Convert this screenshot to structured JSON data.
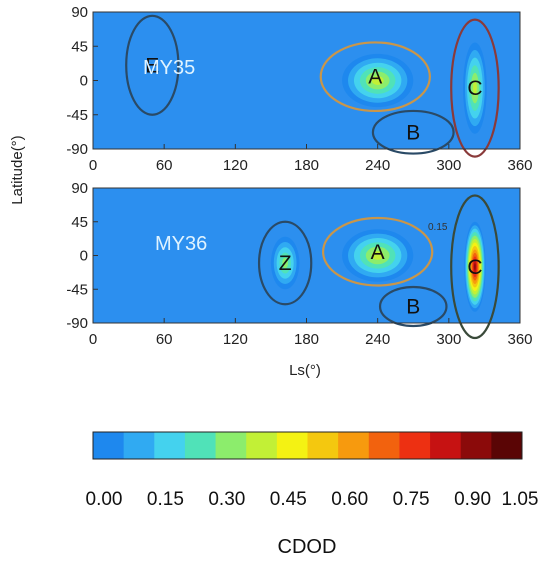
{
  "chart_data": [
    {
      "type": "heatmap",
      "panel_label": "MY35",
      "xlabel": "",
      "ylabel": "Latitude(°)",
      "xlim": [
        0,
        360
      ],
      "ylim": [
        -90,
        90
      ],
      "x_ticks": [
        "0",
        "60",
        "120",
        "180",
        "240",
        "300",
        "360"
      ],
      "y_ticks": [
        "90",
        "45",
        "0",
        "-45",
        "-90"
      ],
      "regions": [
        {
          "label": "E",
          "ls": 50,
          "lat": 20,
          "ls_halfwidth": 22,
          "lat_halfwidth": 65,
          "color": "#2a4a66"
        },
        {
          "label": "A",
          "ls": 238,
          "lat": 5,
          "ls_halfwidth": 46,
          "lat_halfwidth": 45,
          "color": "#c9964a"
        },
        {
          "label": "B",
          "ls": 270,
          "lat": -68,
          "ls_halfwidth": 34,
          "lat_halfwidth": 28,
          "color": "#2a4a66"
        },
        {
          "label": "C",
          "ls": 322,
          "lat": -10,
          "ls_halfwidth": 20,
          "lat_halfwidth": 90,
          "color": "#8a3a3a"
        }
      ],
      "hotspots": [
        {
          "ls": 240,
          "lat": 0,
          "cdod": 0.45,
          "ls_spread": 30,
          "lat_spread": 35
        },
        {
          "ls": 322,
          "lat": -10,
          "cdod": 0.42,
          "ls_spread": 10,
          "lat_spread": 60
        }
      ]
    },
    {
      "type": "heatmap",
      "panel_label": "MY36",
      "xlabel": "Ls(°)",
      "ylabel": "",
      "xlim": [
        0,
        360
      ],
      "ylim": [
        -90,
        90
      ],
      "x_ticks": [
        "0",
        "60",
        "120",
        "180",
        "240",
        "300",
        "360"
      ],
      "y_ticks": [
        "90",
        "45",
        "0",
        "-45",
        "-90"
      ],
      "contour_label": "0.15",
      "regions": [
        {
          "label": "Z",
          "ls": 162,
          "lat": -10,
          "ls_halfwidth": 22,
          "lat_halfwidth": 55,
          "color": "#2a4a66"
        },
        {
          "label": "A",
          "ls": 240,
          "lat": 5,
          "ls_halfwidth": 46,
          "lat_halfwidth": 45,
          "color": "#c9964a"
        },
        {
          "label": "B",
          "ls": 270,
          "lat": -68,
          "ls_halfwidth": 28,
          "lat_halfwidth": 26,
          "color": "#2a4a66"
        },
        {
          "label": "C",
          "ls": 322,
          "lat": -15,
          "ls_halfwidth": 20,
          "lat_halfwidth": 95,
          "color": "#3a4a3a"
        }
      ],
      "hotspots": [
        {
          "ls": 240,
          "lat": 0,
          "cdod": 0.42,
          "ls_spread": 30,
          "lat_spread": 35
        },
        {
          "ls": 322,
          "lat": -15,
          "cdod": 0.95,
          "ls_spread": 9,
          "lat_spread": 60
        },
        {
          "ls": 162,
          "lat": -10,
          "cdod": 0.35,
          "ls_spread": 12,
          "lat_spread": 35
        }
      ]
    }
  ],
  "colorbar": {
    "title": "CDOD",
    "ticks": [
      "0.00",
      "0.15",
      "0.30",
      "0.45",
      "0.60",
      "0.75",
      "0.90",
      "1.05"
    ],
    "range": [
      0,
      1.05
    ],
    "colors": [
      "#1e88ee",
      "#30aaf2",
      "#44d2ee",
      "#50e2b8",
      "#8ced6c",
      "#c2f036",
      "#f4f213",
      "#f4c80f",
      "#f79a0e",
      "#f2620e",
      "#ed3012",
      "#c61212",
      "#8b0a0a",
      "#5a0505"
    ]
  }
}
